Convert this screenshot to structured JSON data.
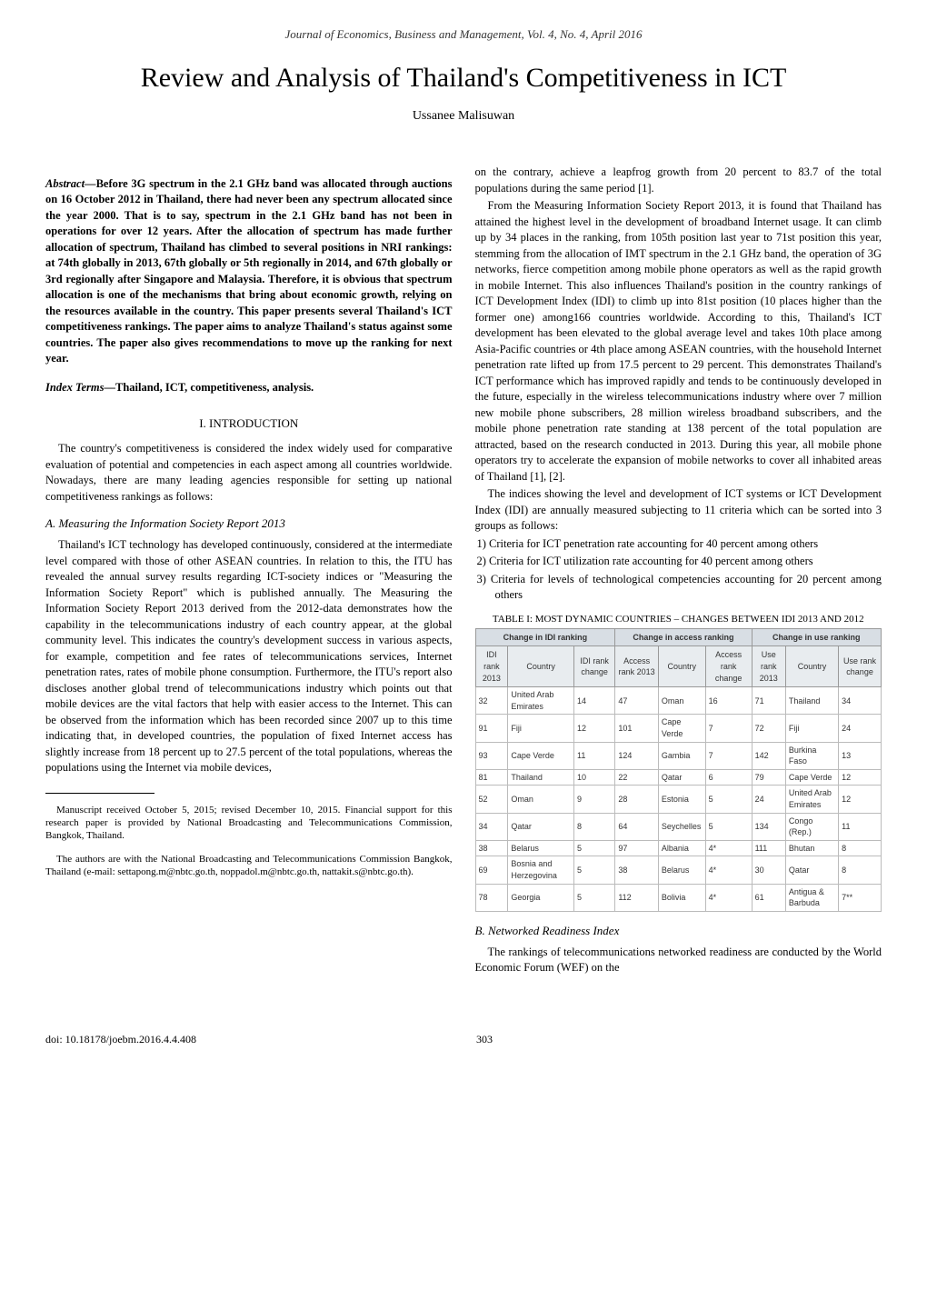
{
  "header": "Journal of Economics, Business and Management, Vol. 4, No. 4, April 2016",
  "title": "Review and Analysis of Thailand's Competitiveness in ICT",
  "author": "Ussanee Malisuwan",
  "abstract_label": "Abstract—",
  "abstract_text": "Before 3G spectrum in the 2.1 GHz band was allocated through auctions on 16 October 2012 in Thailand, there had never been any spectrum allocated since the year 2000. That is to say, spectrum in the 2.1 GHz band has not been in operations for over 12 years. After the allocation of spectrum has made further allocation of spectrum, Thailand has climbed to several positions in NRI rankings: at 74th globally in 2013, 67th globally or 5th regionally in 2014, and 67th globally or 3rd regionally after Singapore and Malaysia. Therefore, it is obvious that spectrum allocation is one of the mechanisms that bring about economic growth, relying on the resources available in the country. This paper presents several Thailand's ICT competitiveness rankings. The paper aims to analyze Thailand's status against some countries. The paper also gives recommendations to move up the ranking for next year.",
  "index_terms_label": "Index Terms—",
  "index_terms_text": "Thailand, ICT, competitiveness, analysis.",
  "section1_heading": "I.   INTRODUCTION",
  "intro_p1": "The country's competitiveness is considered the index widely used for comparative evaluation of potential and competencies in each aspect among all countries worldwide. Nowadays, there are many leading agencies responsible for setting up national competitiveness rankings as follows:",
  "subA": "A.  Measuring the Information Society Report 2013",
  "subA_p1": "Thailand's ICT technology has developed continuously, considered at the intermediate level compared with those of other ASEAN countries. In relation to this, the ITU has revealed the annual survey results regarding ICT-society indices or \"Measuring the Information Society Report\" which is published annually. The Measuring the Information Society Report 2013 derived from the 2012-data demonstrates how the capability in the telecommunications industry of each country appear, at the global community level. This indicates the country's development success in various aspects, for example, competition and fee rates of telecommunications services, Internet penetration rates, rates of mobile phone consumption. Furthermore, the ITU's report also discloses another global trend of telecommunications industry which points out that mobile devices are the vital factors that help with easier access to the Internet. This can be observed from the information which has been recorded since 2007 up to this time indicating that, in developed countries, the population of fixed Internet access has slightly increase from 18 percent up to 27.5 percent of the total populations, whereas the populations using the Internet via mobile devices,",
  "footnote1": "Manuscript received October 5, 2015; revised December 10, 2015. Financial support for this research paper is provided by National Broadcasting and Telecommunications Commission, Bangkok, Thailand.",
  "footnote2": "The authors are with the National Broadcasting and Telecommunications Commission Bangkok, Thailand (e-mail: settapong.m@nbtc.go.th, noppadol.m@nbtc.go.th, nattakit.s@nbtc.go.th).",
  "col2_p1": "on the contrary, achieve a leapfrog growth from 20 percent to 83.7 of the total populations during the same period [1].",
  "col2_p2": "From the Measuring Information Society Report 2013, it is found that Thailand has attained the highest level in the development of broadband Internet usage. It can climb up by 34 places in the ranking, from 105th position last year to 71st position this year, stemming from the allocation of IMT spectrum in the 2.1 GHz band, the operation of 3G networks, fierce competition among mobile phone operators as well as the rapid growth in mobile Internet. This also influences Thailand's position in the country rankings of ICT Development Index (IDI) to climb up into 81st position (10 places higher than the former one) among166 countries worldwide. According to this, Thailand's ICT development has been elevated to the global average level and takes 10th place among Asia-Pacific countries or 4th place among ASEAN countries, with the household Internet penetration rate lifted up from 17.5 percent to 29 percent. This demonstrates Thailand's ICT performance which has improved rapidly and tends to be continuously developed in the future, especially in the wireless telecommunications industry where over 7 million new mobile phone subscribers, 28 million wireless broadband subscribers, and the mobile phone penetration rate standing at 138 percent of the total population are attracted, based on the research conducted in 2013. During this year, all mobile phone operators try to accelerate the expansion of mobile networks to cover all inhabited areas of Thailand [1], [2].",
  "col2_p3": "The indices showing the level and development of ICT systems or ICT Development Index (IDI) are annually measured subjecting to 11 criteria which can be sorted into 3 groups as follows:",
  "list1": "1)  Criteria for ICT penetration rate accounting for 40 percent among others",
  "list2": "2)  Criteria for ICT utilization rate accounting for 40 percent among others",
  "list3": "3)  Criteria for levels of technological competencies accounting for 20 percent among others",
  "table_caption": "TABLE I: MOST DYNAMIC COUNTRIES – CHANGES BETWEEN IDI 2013 AND 2012",
  "table": {
    "section_heads": [
      "Change in IDI ranking",
      "Change in access ranking",
      "Change in use ranking"
    ],
    "col_heads": [
      "IDI rank 2013",
      "Country",
      "IDI rank change",
      "Access rank 2013",
      "Country",
      "Access rank change",
      "Use rank 2013",
      "Country",
      "Use rank change"
    ],
    "rows": [
      [
        "32",
        "United Arab Emirates",
        "14",
        "47",
        "Oman",
        "16",
        "71",
        "Thailand",
        "34"
      ],
      [
        "91",
        "Fiji",
        "12",
        "101",
        "Cape Verde",
        "7",
        "72",
        "Fiji",
        "24"
      ],
      [
        "93",
        "Cape Verde",
        "11",
        "124",
        "Gambia",
        "7",
        "142",
        "Burkina Faso",
        "13"
      ],
      [
        "81",
        "Thailand",
        "10",
        "22",
        "Qatar",
        "6",
        "79",
        "Cape Verde",
        "12"
      ],
      [
        "52",
        "Oman",
        "9",
        "28",
        "Estonia",
        "5",
        "24",
        "United Arab Emirates",
        "12"
      ],
      [
        "34",
        "Qatar",
        "8",
        "64",
        "Seychelles",
        "5",
        "134",
        "Congo (Rep.)",
        "11"
      ],
      [
        "38",
        "Belarus",
        "5",
        "97",
        "Albania",
        "4*",
        "111",
        "Bhutan",
        "8"
      ],
      [
        "69",
        "Bosnia and Herzegovina",
        "5",
        "38",
        "Belarus",
        "4*",
        "30",
        "Qatar",
        "8"
      ],
      [
        "78",
        "Georgia",
        "5",
        "112",
        "Bolivia",
        "4*",
        "61",
        "Antigua & Barbuda",
        "7**"
      ]
    ],
    "header_bg": "#e8ecef",
    "section_bg": "#d8dee4",
    "border_color": "#999999"
  },
  "subB": "B.  Networked Readiness Index",
  "subB_p1": "The rankings of telecommunications networked readiness are conducted by the World Economic Forum (WEF) on the",
  "doi": "doi: 10.18178/joebm.2016.4.4.408",
  "page_number": "303"
}
